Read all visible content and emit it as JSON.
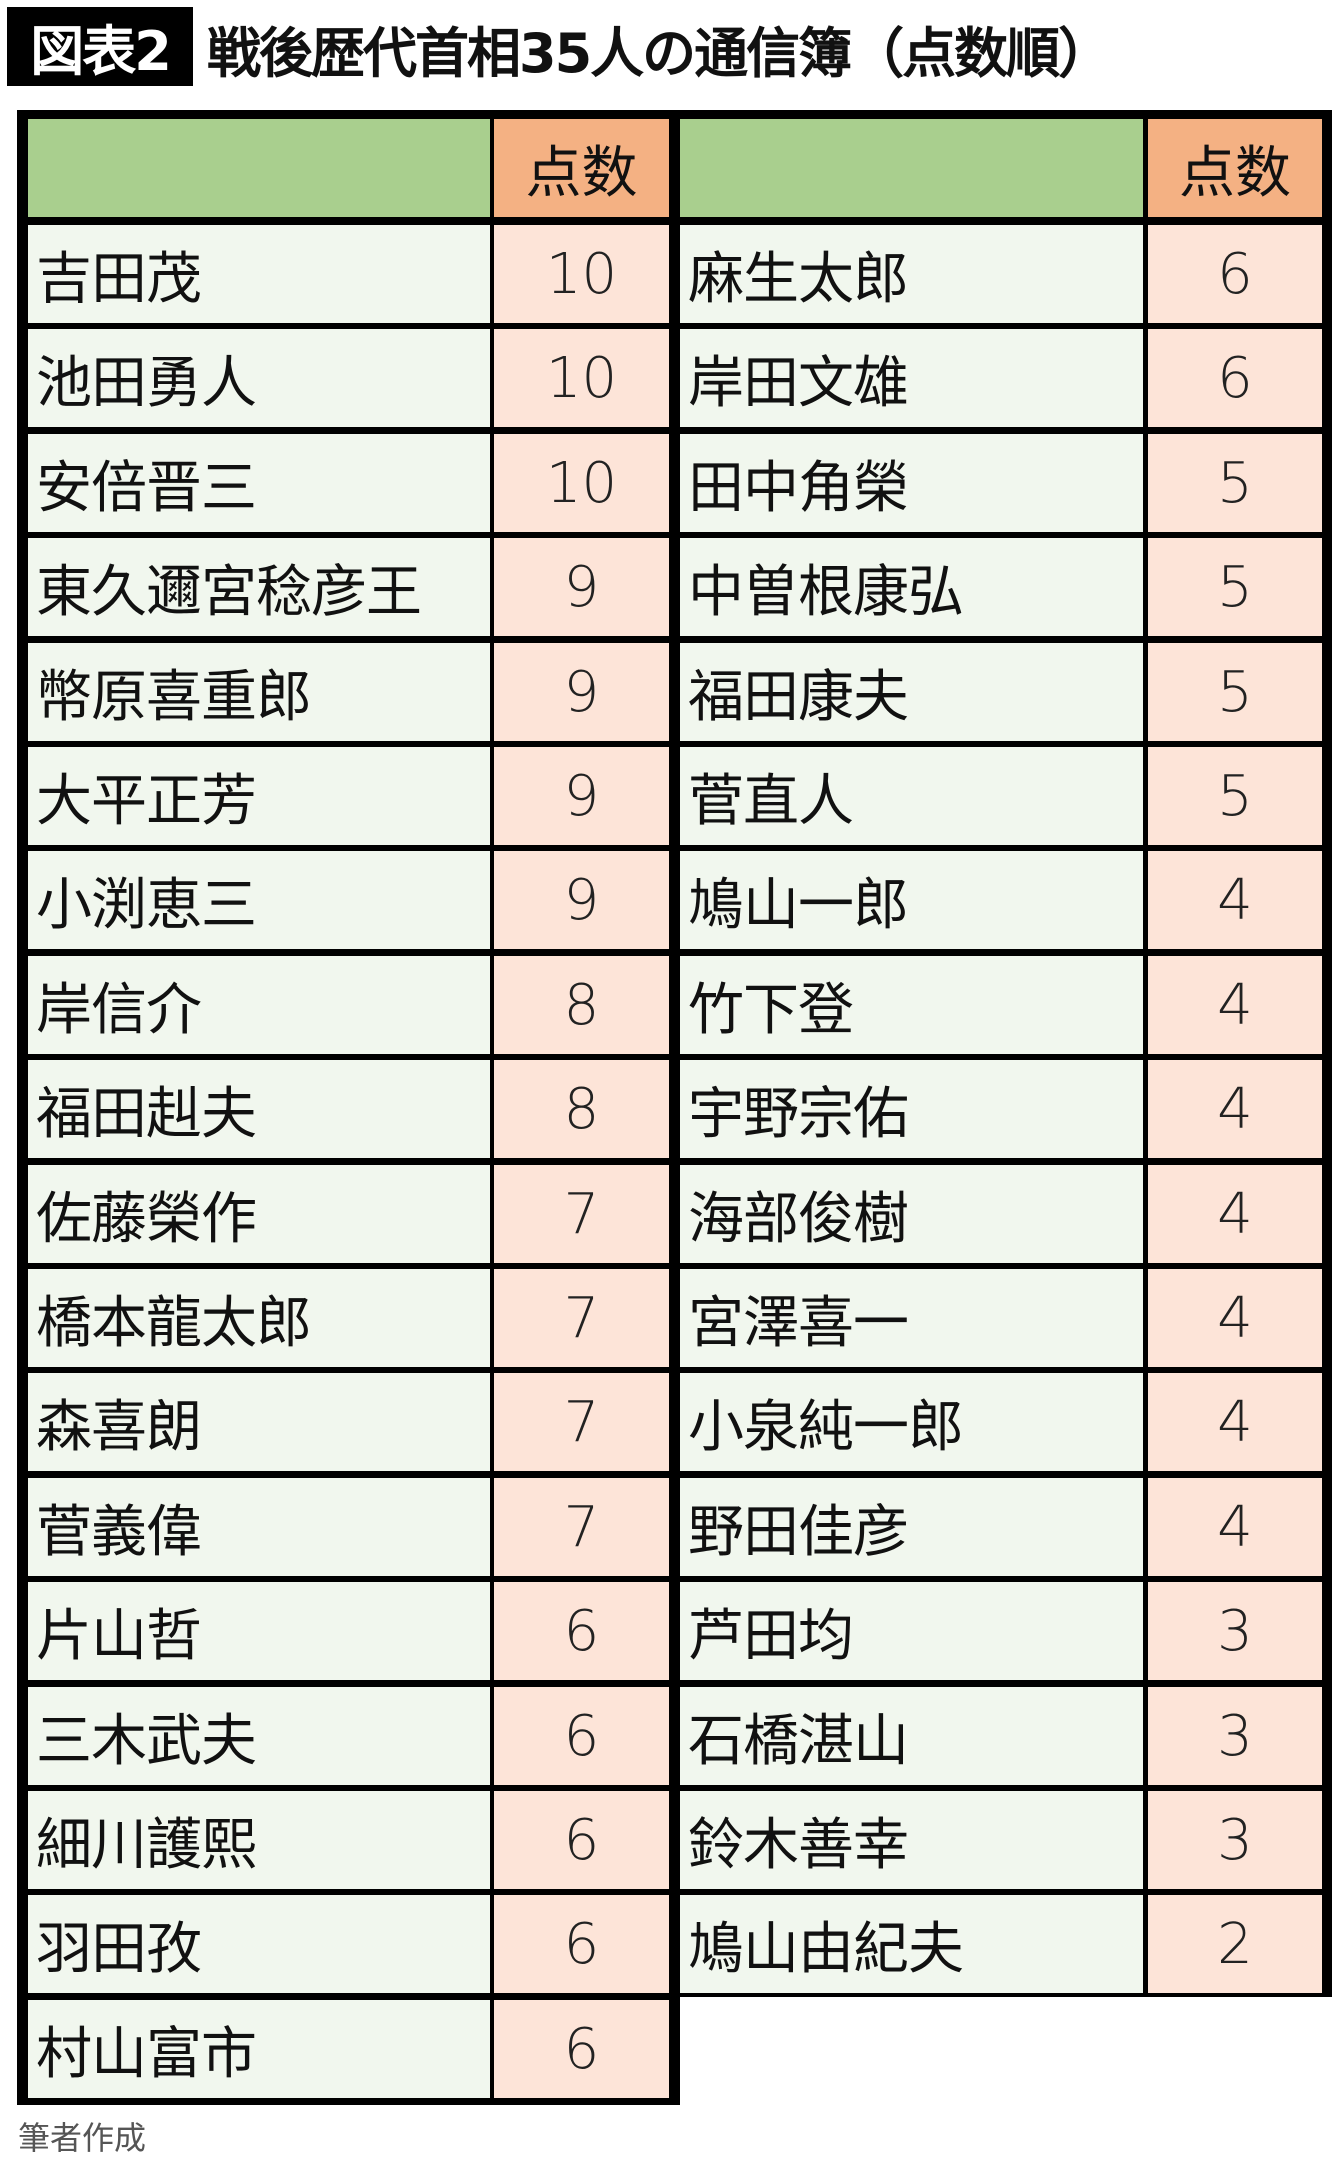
{
  "figure_label": "図表2",
  "title": "戦後歴代首相35人の通信簿（点数順）",
  "source_note": "筆者作成",
  "colors": {
    "header_name": "#a9cf8e",
    "header_score": "#f4b183",
    "name_cell": "#f1f7ee",
    "score_cell": "#fde4d8",
    "border": "#000000"
  },
  "chart_data": {
    "type": "table",
    "title": "戦後歴代首相35人の通信簿（点数順）",
    "columns": [
      "",
      "点数"
    ],
    "left": [
      {
        "name": "吉田茂",
        "score": 10
      },
      {
        "name": "池田勇人",
        "score": 10
      },
      {
        "name": "安倍晋三",
        "score": 10
      },
      {
        "name": "東久邇宮稔彦王",
        "score": 9
      },
      {
        "name": "幣原喜重郎",
        "score": 9
      },
      {
        "name": "大平正芳",
        "score": 9
      },
      {
        "name": "小渕恵三",
        "score": 9
      },
      {
        "name": "岸信介",
        "score": 8
      },
      {
        "name": "福田赳夫",
        "score": 8
      },
      {
        "name": "佐藤榮作",
        "score": 7
      },
      {
        "name": "橋本龍太郎",
        "score": 7
      },
      {
        "name": "森喜朗",
        "score": 7
      },
      {
        "name": "菅義偉",
        "score": 7
      },
      {
        "name": "片山哲",
        "score": 6
      },
      {
        "name": "三木武夫",
        "score": 6
      },
      {
        "name": "細川護熙",
        "score": 6
      },
      {
        "name": "羽田孜",
        "score": 6
      },
      {
        "name": "村山富市",
        "score": 6
      }
    ],
    "right": [
      {
        "name": "麻生太郎",
        "score": 6
      },
      {
        "name": "岸田文雄",
        "score": 6
      },
      {
        "name": "田中角榮",
        "score": 5
      },
      {
        "name": "中曽根康弘",
        "score": 5
      },
      {
        "name": "福田康夫",
        "score": 5
      },
      {
        "name": "菅直人",
        "score": 5
      },
      {
        "name": "鳩山一郎",
        "score": 4
      },
      {
        "name": "竹下登",
        "score": 4
      },
      {
        "name": "宇野宗佑",
        "score": 4
      },
      {
        "name": "海部俊樹",
        "score": 4
      },
      {
        "name": "宮澤喜一",
        "score": 4
      },
      {
        "name": "小泉純一郎",
        "score": 4
      },
      {
        "name": "野田佳彦",
        "score": 4
      },
      {
        "name": "芦田均",
        "score": 3
      },
      {
        "name": "石橋湛山",
        "score": 3
      },
      {
        "name": "鈴木善幸",
        "score": 3
      },
      {
        "name": "鳩山由紀夫",
        "score": 2
      }
    ]
  }
}
